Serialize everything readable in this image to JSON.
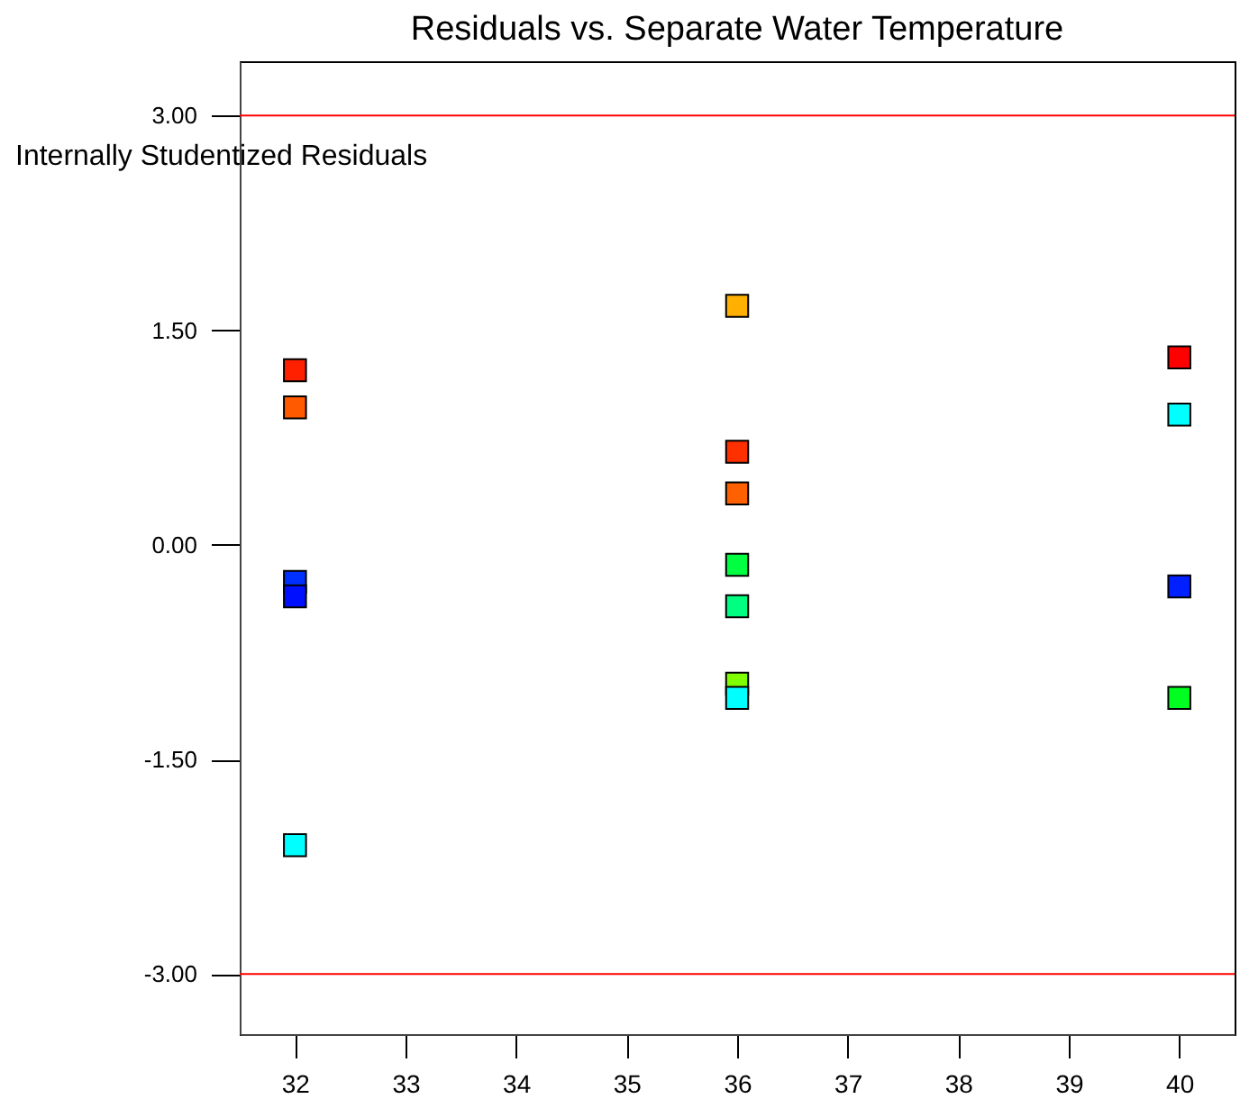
{
  "chart_data": {
    "type": "scatter",
    "title": "Residuals vs. Separate Water Temperature",
    "ylabel": "Internally Studentized Residuals",
    "x": [
      32,
      32,
      32,
      32,
      32,
      36,
      36,
      36,
      36,
      36,
      36,
      36,
      40,
      40,
      40,
      40
    ],
    "values": [
      1.22,
      0.96,
      -0.26,
      -0.36,
      -2.1,
      1.67,
      0.65,
      0.36,
      -0.14,
      -0.43,
      -0.97,
      -1.07,
      1.31,
      0.91,
      -0.29,
      -1.07
    ],
    "colors": [
      "#ff2000",
      "#ff5a00",
      "#0030ff",
      "#0010ff",
      "#00ffff",
      "#ffb000",
      "#ff3000",
      "#ff6000",
      "#00ff40",
      "#00ff80",
      "#80ff00",
      "#00ffff",
      "#ff0000",
      "#00ffff",
      "#0020ff",
      "#00ff20"
    ],
    "marker": "square",
    "grid": false,
    "xlim": [
      31.5,
      40.5
    ],
    "xticks": [
      32,
      33,
      34,
      35,
      36,
      37,
      38,
      39,
      40
    ],
    "ylim": [
      -3.42,
      3.38
    ],
    "yticks": [
      {
        "value": -3,
        "label": "-3.00"
      },
      {
        "value": -1.5,
        "label": "-1.50"
      },
      {
        "value": 0,
        "label": "0.00"
      },
      {
        "value": 1.5,
        "label": "1.50"
      },
      {
        "value": 3,
        "label": "3.00"
      }
    ],
    "ref_lines": [
      {
        "axis": "y",
        "value": 3,
        "color": "#ff0000"
      },
      {
        "axis": "y",
        "value": -3,
        "color": "#ff0000"
      }
    ]
  }
}
